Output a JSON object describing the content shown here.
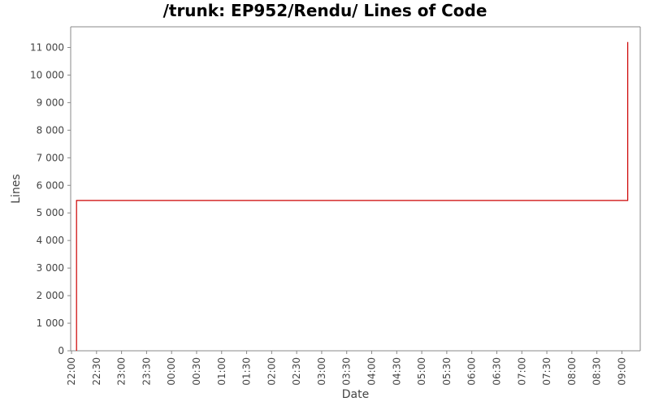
{
  "chart_data": {
    "type": "line",
    "title": "/trunk: EP952/Rendu/ Lines of Code",
    "xlabel": "Date",
    "ylabel": "Lines",
    "y_ticks": [
      "0",
      "1 000",
      "2 000",
      "3 000",
      "4 000",
      "5 000",
      "6 000",
      "7 000",
      "8 000",
      "9 000",
      "10 000",
      "11 000"
    ],
    "x_ticks": [
      "22:00",
      "22:30",
      "23:00",
      "23:30",
      "00:00",
      "00:30",
      "01:00",
      "01:30",
      "02:00",
      "02:30",
      "03:00",
      "03:30",
      "04:00",
      "04:30",
      "05:00",
      "05:30",
      "06:00",
      "06:30",
      "07:00",
      "07:30",
      "08:00",
      "08:30",
      "09:00"
    ],
    "ylim": [
      0,
      11750
    ],
    "xlim": [
      "21:59",
      "09:22"
    ],
    "grid": false,
    "series": [
      {
        "color": "#cc0000",
        "step": true,
        "points": [
          {
            "x": "22:06",
            "y": 0
          },
          {
            "x": "22:06",
            "y": 5450
          },
          {
            "x": "09:07",
            "y": 5450
          },
          {
            "x": "09:07",
            "y": 11200
          }
        ]
      }
    ]
  }
}
